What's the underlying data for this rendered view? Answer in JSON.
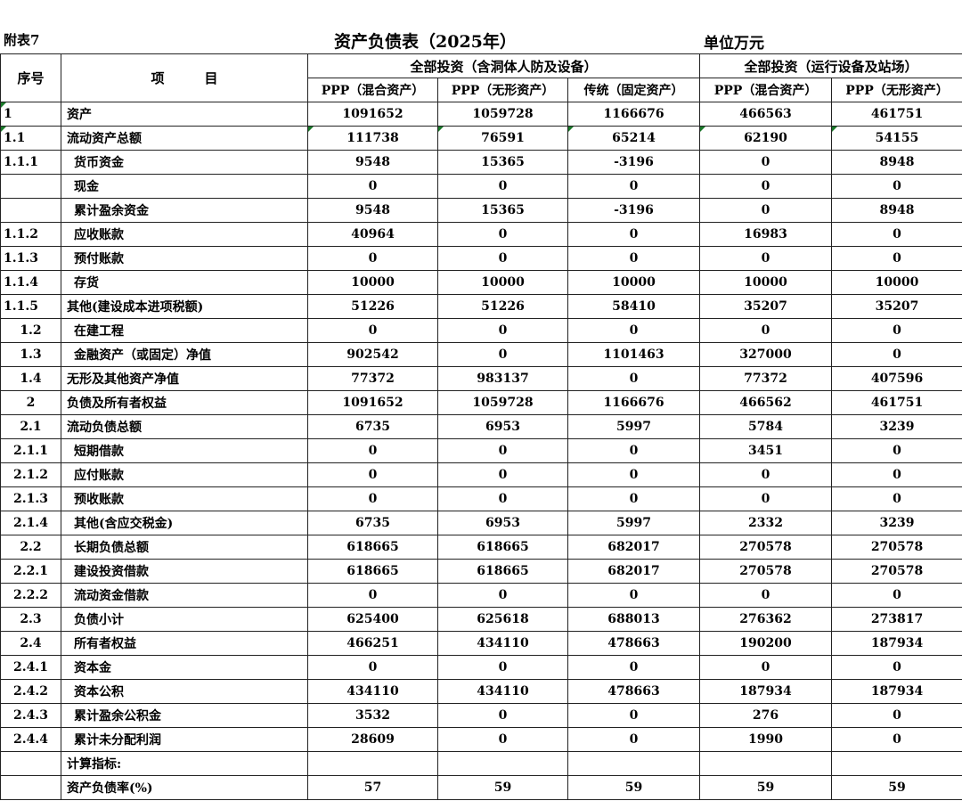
{
  "header": {
    "annex": "附表7",
    "title": "资产负债表（2025年）",
    "unit": "单位万元"
  },
  "columns": {
    "seq": "序号",
    "item": "项　　　目",
    "group1": "全部投资（含洞体人防及设备）",
    "group2": "全部投资（运行设备及站场）",
    "sub": [
      "PPP（混合资产）",
      "PPP（无形资产）",
      "传统（固定资产）",
      "PPP（混合资产）",
      "PPP（无形资产）"
    ]
  },
  "rows": [
    {
      "seq": "1",
      "item": "资产",
      "values": [
        "1091652",
        "1059728",
        "1166676",
        "466563",
        "461751"
      ]
    },
    {
      "seq": "1.1",
      "item": "流动资产总额",
      "values": [
        "111738",
        "76591",
        "65214",
        "62190",
        "54155"
      ]
    },
    {
      "seq": "1.1.1",
      "item": "货币资金",
      "values": [
        "9548",
        "15365",
        "-3196",
        "0",
        "8948"
      ]
    },
    {
      "seq": "",
      "item": "现金",
      "values": [
        "0",
        "0",
        "0",
        "0",
        "0"
      ]
    },
    {
      "seq": "",
      "item": "累计盈余资金",
      "values": [
        "9548",
        "15365",
        "-3196",
        "0",
        "8948"
      ]
    },
    {
      "seq": "1.1.2",
      "item": "应收账款",
      "values": [
        "40964",
        "0",
        "0",
        "16983",
        "0"
      ]
    },
    {
      "seq": "1.1.3",
      "item": "预付账款",
      "values": [
        "0",
        "0",
        "0",
        "0",
        "0"
      ]
    },
    {
      "seq": "1.1.4",
      "item": "存货",
      "values": [
        "10000",
        "10000",
        "10000",
        "10000",
        "10000"
      ]
    },
    {
      "seq": "1.1.5",
      "item": "其他(建设成本进项税额)",
      "values": [
        "51226",
        "51226",
        "58410",
        "35207",
        "35207"
      ]
    },
    {
      "seq": "1.2",
      "item": "在建工程",
      "values": [
        "0",
        "0",
        "0",
        "0",
        "0"
      ]
    },
    {
      "seq": "1.3",
      "item": "金融资产（或固定）净值",
      "values": [
        "902542",
        "0",
        "1101463",
        "327000",
        "0"
      ]
    },
    {
      "seq": "1.4",
      "item": "无形及其他资产净值",
      "values": [
        "77372",
        "983137",
        "0",
        "77372",
        "407596"
      ]
    },
    {
      "seq": "2",
      "item": "负债及所有者权益",
      "values": [
        "1091652",
        "1059728",
        "1166676",
        "466562",
        "461751"
      ]
    },
    {
      "seq": "2.1",
      "item": "流动负债总额",
      "values": [
        "6735",
        "6953",
        "5997",
        "5784",
        "3239"
      ]
    },
    {
      "seq": "2.1.1",
      "item": "短期借款",
      "values": [
        "0",
        "0",
        "0",
        "3451",
        "0"
      ]
    },
    {
      "seq": "2.1.2",
      "item": "应付账款",
      "values": [
        "0",
        "0",
        "0",
        "0",
        "0"
      ]
    },
    {
      "seq": "2.1.3",
      "item": "预收账款",
      "values": [
        "0",
        "0",
        "0",
        "0",
        "0"
      ]
    },
    {
      "seq": "2.1.4",
      "item": "其他(含应交税金)",
      "values": [
        "6735",
        "6953",
        "5997",
        "2332",
        "3239"
      ]
    },
    {
      "seq": "2.2",
      "item": "长期负债总额",
      "values": [
        "618665",
        "618665",
        "682017",
        "270578",
        "270578"
      ]
    },
    {
      "seq": "2.2.1",
      "item": "建设投资借款",
      "values": [
        "618665",
        "618665",
        "682017",
        "270578",
        "270578"
      ]
    },
    {
      "seq": "2.2.2",
      "item": "流动资金借款",
      "values": [
        "0",
        "0",
        "0",
        "0",
        "0"
      ]
    },
    {
      "seq": "2.3",
      "item": "负债小计",
      "values": [
        "625400",
        "625618",
        "688013",
        "276362",
        "273817"
      ]
    },
    {
      "seq": "2.4",
      "item": "所有者权益",
      "values": [
        "466251",
        "434110",
        "478663",
        "190200",
        "187934"
      ]
    },
    {
      "seq": "2.4.1",
      "item": "资本金",
      "values": [
        "0",
        "0",
        "0",
        "0",
        "0"
      ]
    },
    {
      "seq": "2.4.2",
      "item": "资本公积",
      "values": [
        "434110",
        "434110",
        "478663",
        "187934",
        "187934"
      ]
    },
    {
      "seq": "2.4.3",
      "item": "累计盈余公积金",
      "values": [
        "3532",
        "0",
        "0",
        "276",
        "0"
      ]
    },
    {
      "seq": "2.4.4",
      "item": "累计未分配利润",
      "values": [
        "28609",
        "0",
        "0",
        "1990",
        "0"
      ]
    },
    {
      "seq": "",
      "item": "计算指标:",
      "values": [
        "",
        "",
        "",
        "",
        ""
      ]
    },
    {
      "seq": "",
      "item": "资产负债率(%)",
      "values": [
        "57",
        "59",
        "59",
        "59",
        "59"
      ]
    }
  ]
}
